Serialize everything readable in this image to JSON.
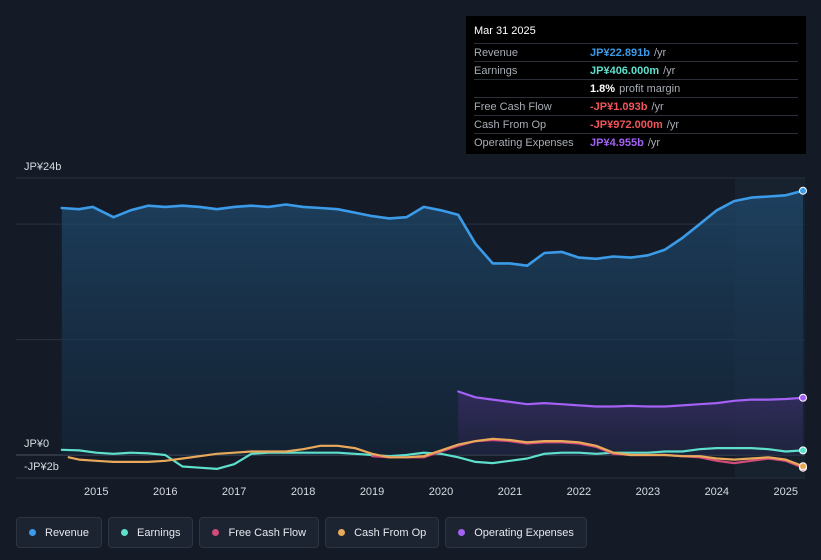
{
  "tooltip": {
    "date": "Mar 31 2025",
    "rows": [
      {
        "label": "Revenue",
        "value": "JP¥22.891b",
        "unit": "/yr",
        "color": "#3b9be9"
      },
      {
        "label": "Earnings",
        "value": "JP¥406.000m",
        "unit": "/yr",
        "color": "#5ee0cc"
      },
      {
        "label": "",
        "value": "1.8%",
        "unit": "profit margin",
        "color": "#ffffff"
      },
      {
        "label": "Free Cash Flow",
        "value": "-JP¥1.093b",
        "unit": "/yr",
        "color": "#f2545b"
      },
      {
        "label": "Cash From Op",
        "value": "-JP¥972.000m",
        "unit": "/yr",
        "color": "#f2545b"
      },
      {
        "label": "Operating Expenses",
        "value": "JP¥4.955b",
        "unit": "/yr",
        "color": "#a461f5"
      }
    ]
  },
  "legend": [
    {
      "label": "Revenue",
      "color": "#3b9be9"
    },
    {
      "label": "Earnings",
      "color": "#5ee0cc"
    },
    {
      "label": "Free Cash Flow",
      "color": "#d44b7a"
    },
    {
      "label": "Cash From Op",
      "color": "#e9a95b"
    },
    {
      "label": "Operating Expenses",
      "color": "#a461f5"
    }
  ],
  "chart_data": {
    "type": "line",
    "ylabel_top": "JP¥24b",
    "ylabel_zero": "JP¥0",
    "ylabel_bottom": "-JP¥2b",
    "ylim": [
      -2,
      24
    ],
    "xlim": [
      2014.3,
      2025.25
    ],
    "xticks": [
      "2015",
      "2016",
      "2017",
      "2018",
      "2019",
      "2020",
      "2021",
      "2022",
      "2023",
      "2024",
      "2025"
    ],
    "series": [
      {
        "name": "Revenue",
        "color": "#3b9be9",
        "x": [
          2014.5,
          2014.75,
          2014.95,
          2015.25,
          2015.5,
          2015.75,
          2016.0,
          2016.25,
          2016.5,
          2016.75,
          2017.0,
          2017.25,
          2017.5,
          2017.75,
          2018.0,
          2018.25,
          2018.5,
          2018.75,
          2019.0,
          2019.25,
          2019.5,
          2019.75,
          2020.0,
          2020.25,
          2020.5,
          2020.75,
          2021.0,
          2021.25,
          2021.5,
          2021.75,
          2022.0,
          2022.25,
          2022.5,
          2022.75,
          2023.0,
          2023.25,
          2023.5,
          2023.75,
          2024.0,
          2024.25,
          2024.5,
          2024.75,
          2025.0,
          2025.25
        ],
        "y": [
          21.4,
          21.3,
          21.5,
          20.6,
          21.2,
          21.6,
          21.5,
          21.6,
          21.5,
          21.3,
          21.5,
          21.6,
          21.5,
          21.7,
          21.5,
          21.4,
          21.3,
          21.0,
          20.7,
          20.5,
          20.6,
          21.5,
          21.2,
          20.8,
          18.3,
          16.6,
          16.6,
          16.4,
          17.5,
          17.6,
          17.1,
          17.0,
          17.2,
          17.1,
          17.3,
          17.8,
          18.8,
          20.0,
          21.2,
          22.0,
          22.3,
          22.4,
          22.5,
          22.9
        ]
      },
      {
        "name": "Earnings",
        "color": "#5ee0cc",
        "x": [
          2014.5,
          2014.75,
          2015.0,
          2015.25,
          2015.5,
          2015.75,
          2016.0,
          2016.25,
          2016.5,
          2016.75,
          2017.0,
          2017.25,
          2017.5,
          2017.75,
          2018.0,
          2018.25,
          2018.5,
          2018.75,
          2019.0,
          2019.25,
          2019.5,
          2019.75,
          2020.0,
          2020.25,
          2020.5,
          2020.75,
          2021.0,
          2021.25,
          2021.5,
          2021.75,
          2022.0,
          2022.25,
          2022.5,
          2022.75,
          2023.0,
          2023.25,
          2023.5,
          2023.75,
          2024.0,
          2024.25,
          2024.5,
          2024.75,
          2025.0,
          2025.25
        ],
        "y": [
          0.45,
          0.4,
          0.2,
          0.1,
          0.2,
          0.15,
          0.0,
          -1.0,
          -1.1,
          -1.2,
          -0.8,
          0.1,
          0.2,
          0.2,
          0.2,
          0.2,
          0.2,
          0.1,
          0.0,
          -0.1,
          0.0,
          0.2,
          0.1,
          -0.2,
          -0.6,
          -0.7,
          -0.5,
          -0.3,
          0.1,
          0.2,
          0.2,
          0.1,
          0.2,
          0.2,
          0.2,
          0.3,
          0.3,
          0.5,
          0.6,
          0.6,
          0.6,
          0.5,
          0.3,
          0.4
        ]
      },
      {
        "name": "Free Cash Flow",
        "color": "#d44b7a",
        "x": [
          2019.0,
          2019.25,
          2019.5,
          2019.75,
          2020.0,
          2020.25,
          2020.5,
          2020.75,
          2021.0,
          2021.25,
          2021.5,
          2021.75,
          2022.0,
          2022.25,
          2022.5,
          2022.75,
          2023.0,
          2023.25,
          2023.5,
          2023.75,
          2024.0,
          2024.25,
          2024.5,
          2024.75,
          2025.0,
          2025.25
        ],
        "y": [
          -0.1,
          -0.2,
          -0.2,
          -0.2,
          0.3,
          0.8,
          1.2,
          1.3,
          1.2,
          1.0,
          1.1,
          1.1,
          1.0,
          0.7,
          0.1,
          0.0,
          0.0,
          0.0,
          -0.1,
          -0.2,
          -0.5,
          -0.7,
          -0.5,
          -0.3,
          -0.5,
          -1.1
        ]
      },
      {
        "name": "Cash From Op",
        "color": "#e9a95b",
        "x": [
          2014.6,
          2014.75,
          2015.0,
          2015.25,
          2015.5,
          2015.75,
          2016.0,
          2016.25,
          2016.5,
          2016.75,
          2017.0,
          2017.25,
          2017.5,
          2017.75,
          2018.0,
          2018.25,
          2018.5,
          2018.75,
          2019.0,
          2019.25,
          2019.5,
          2019.75,
          2020.0,
          2020.25,
          2020.5,
          2020.75,
          2021.0,
          2021.25,
          2021.5,
          2021.75,
          2022.0,
          2022.25,
          2022.5,
          2022.75,
          2023.0,
          2023.25,
          2023.5,
          2023.75,
          2024.0,
          2024.25,
          2024.5,
          2024.75,
          2025.0,
          2025.25
        ],
        "y": [
          -0.2,
          -0.4,
          -0.5,
          -0.6,
          -0.6,
          -0.6,
          -0.5,
          -0.3,
          -0.1,
          0.1,
          0.2,
          0.3,
          0.3,
          0.3,
          0.5,
          0.8,
          0.8,
          0.6,
          0.1,
          -0.2,
          -0.2,
          -0.1,
          0.4,
          0.9,
          1.2,
          1.4,
          1.3,
          1.1,
          1.2,
          1.2,
          1.1,
          0.8,
          0.2,
          0.0,
          0.0,
          0.0,
          -0.1,
          -0.1,
          -0.3,
          -0.4,
          -0.3,
          -0.2,
          -0.4,
          -0.97
        ]
      },
      {
        "name": "Operating Expenses",
        "color": "#a461f5",
        "x": [
          2020.25,
          2020.5,
          2020.75,
          2021.0,
          2021.25,
          2021.5,
          2021.75,
          2022.0,
          2022.25,
          2022.5,
          2022.75,
          2023.0,
          2023.25,
          2023.5,
          2023.75,
          2024.0,
          2024.25,
          2024.5,
          2024.75,
          2025.0,
          2025.25
        ],
        "y": [
          5.5,
          5.0,
          4.8,
          4.6,
          4.4,
          4.5,
          4.4,
          4.3,
          4.2,
          4.2,
          4.25,
          4.2,
          4.2,
          4.3,
          4.4,
          4.5,
          4.7,
          4.8,
          4.8,
          4.85,
          4.96
        ]
      }
    ]
  }
}
